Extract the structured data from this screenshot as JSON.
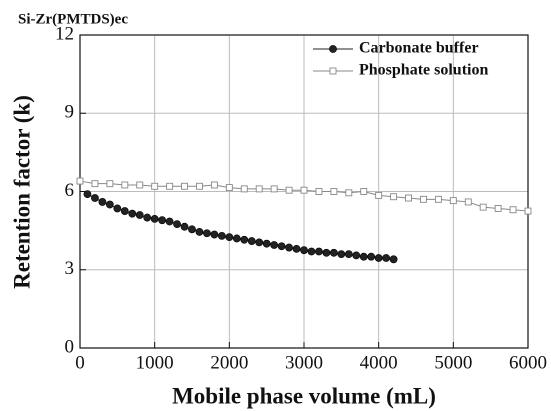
{
  "chart_data": {
    "type": "line",
    "title": "Si-Zr(PMTDS)ec",
    "xlabel": "Mobile phase volume (mL)",
    "ylabel": "Retention factor (k)",
    "xlim": [
      0,
      6000
    ],
    "xticks": [
      0,
      1000,
      2000,
      3000,
      4000,
      5000,
      6000
    ],
    "ylim": [
      0,
      12
    ],
    "yticks": [
      0,
      3,
      6,
      9,
      12
    ],
    "grid": true,
    "legend": "upper right",
    "series": [
      {
        "name": "Carbonate buffer",
        "color": "#222222",
        "marker": "circle",
        "x": [
          100,
          200,
          300,
          400,
          500,
          600,
          700,
          800,
          900,
          1000,
          1100,
          1200,
          1300,
          1400,
          1500,
          1600,
          1700,
          1800,
          1900,
          2000,
          2100,
          2200,
          2300,
          2400,
          2500,
          2600,
          2700,
          2800,
          2900,
          3000,
          3100,
          3200,
          3300,
          3400,
          3500,
          3600,
          3700,
          3800,
          3900,
          4000,
          4100,
          4200
        ],
        "values": [
          5.9,
          5.75,
          5.6,
          5.5,
          5.35,
          5.25,
          5.15,
          5.1,
          5.0,
          4.95,
          4.9,
          4.85,
          4.75,
          4.65,
          4.55,
          4.45,
          4.4,
          4.35,
          4.3,
          4.25,
          4.2,
          4.15,
          4.1,
          4.05,
          4.0,
          3.95,
          3.9,
          3.85,
          3.8,
          3.75,
          3.7,
          3.7,
          3.65,
          3.65,
          3.6,
          3.6,
          3.55,
          3.5,
          3.5,
          3.45,
          3.45,
          3.4
        ]
      },
      {
        "name": "Phosphate solution",
        "color": "#888888",
        "marker": "square",
        "x": [
          0,
          200,
          400,
          600,
          800,
          1000,
          1200,
          1400,
          1600,
          1800,
          2000,
          2200,
          2400,
          2600,
          2800,
          3000,
          3200,
          3400,
          3600,
          3800,
          4000,
          4200,
          4400,
          4600,
          4800,
          5000,
          5200,
          5400,
          5600,
          5800,
          6000
        ],
        "values": [
          6.4,
          6.3,
          6.3,
          6.25,
          6.25,
          6.2,
          6.2,
          6.2,
          6.2,
          6.25,
          6.15,
          6.1,
          6.1,
          6.1,
          6.05,
          6.05,
          6.0,
          6.0,
          5.95,
          6.0,
          5.85,
          5.8,
          5.75,
          5.7,
          5.7,
          5.65,
          5.6,
          5.4,
          5.35,
          5.3,
          5.25
        ]
      }
    ]
  }
}
